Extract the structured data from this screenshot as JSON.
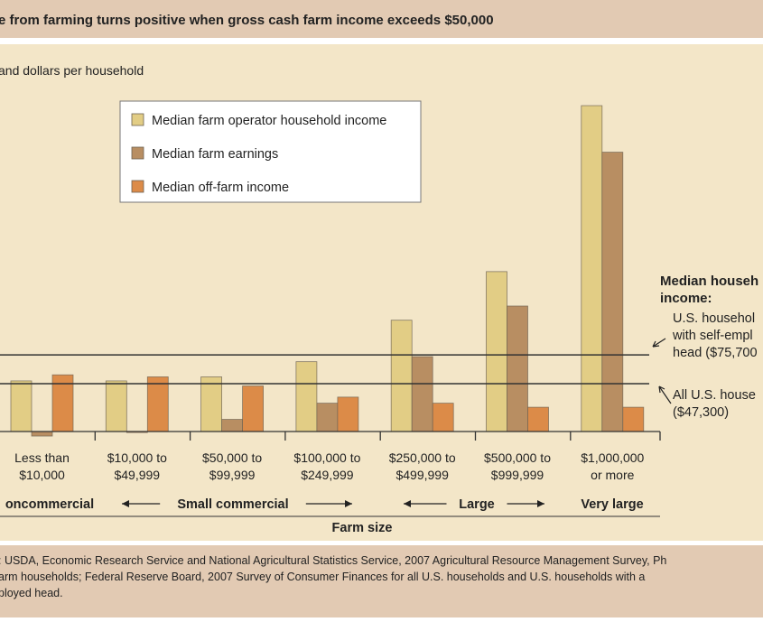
{
  "chart_data": {
    "type": "bar",
    "title": "e from farming turns positive when gross cash farm income exceeds $50,000",
    "ylabel": "and dollars per household",
    "xlabel": "Farm size",
    "ylim": [
      -10,
      330
    ],
    "categories": [
      [
        "Less than",
        "$10,000"
      ],
      [
        "$10,000 to",
        "$49,999"
      ],
      [
        "$50,000 to",
        "$99,999"
      ],
      [
        "$100,000 to",
        "$249,999"
      ],
      [
        "$250,000 to",
        "$499,999"
      ],
      [
        "$500,000 to",
        "$999,999"
      ],
      [
        "$1,000,000",
        "or more"
      ]
    ],
    "series": [
      {
        "name": "Median farm operator household income",
        "color": "#e2cd85",
        "values": [
          50,
          50,
          54,
          69,
          110,
          158,
          322
        ]
      },
      {
        "name": "Median farm earnings",
        "color": "#b88e62",
        "values": [
          -4.5,
          -1,
          12,
          28,
          74,
          124,
          276
        ]
      },
      {
        "name": "Median off-farm income",
        "color": "#dc8b48",
        "values": [
          56,
          54,
          45,
          34,
          28,
          24,
          24
        ]
      }
    ],
    "groups": [
      {
        "label": "oncommercial",
        "arrows": false
      },
      {
        "label": "Small commercial",
        "arrows": true
      },
      {
        "label": "Large",
        "arrows": true
      },
      {
        "label": "Very large",
        "arrows": false
      }
    ],
    "reference_lines": [
      {
        "value": 75.7,
        "label_lines": [
          "U.S. househol",
          "with self-empl",
          "head ($75,700"
        ]
      },
      {
        "value": 47.3,
        "label_lines": [
          "All U.S. house",
          "($47,300)"
        ]
      }
    ],
    "reference_heading": [
      "Median househ",
      "income:"
    ],
    "legend_position": "top-left"
  },
  "source": [
    ": USDA, Economic Research Service and National Agricultural Statistics Service, 2007 Agricultural Resource Management Survey, Ph",
    "arm households; Federal Reserve Board, 2007 Survey of Consumer Finances for all U.S. households and U.S. households with a",
    "ployed head."
  ]
}
